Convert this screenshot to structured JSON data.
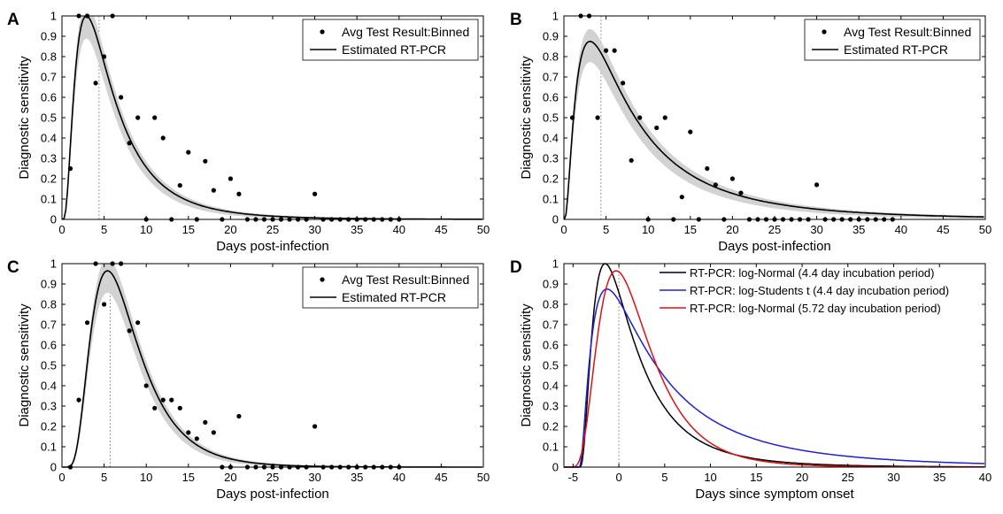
{
  "chart_data": [
    {
      "panel": "A",
      "type": "scatter",
      "xlabel": "Days post-infection",
      "ylabel": "Diagnostic sensitivity",
      "xlim": [
        0,
        50
      ],
      "ylim": [
        0,
        1
      ],
      "xticks": [
        0,
        5,
        10,
        15,
        20,
        25,
        30,
        35,
        40,
        45,
        50
      ],
      "yticks": [
        0,
        0.1,
        0.2,
        0.3,
        0.4,
        0.5,
        0.6,
        0.7,
        0.8,
        0.9,
        1
      ],
      "ytick_labels": [
        "0",
        "0.1",
        "0.2",
        "0.3",
        "0.4",
        "0.5",
        "0.6",
        "0.7",
        "0.8",
        "0.9",
        "1"
      ],
      "legend": {
        "position": "top-right",
        "entries": [
          "Avg Test Result:Binned",
          "Estimated RT-PCR"
        ]
      },
      "incubation_line_x": 4.4,
      "series": [
        {
          "name": "Avg Test Result:Binned",
          "kind": "points",
          "x": [
            1,
            2,
            3,
            4,
            5,
            6,
            7,
            8,
            9,
            10,
            11,
            12,
            13,
            14,
            15,
            16,
            17,
            18,
            19,
            20,
            21,
            22,
            23,
            24,
            25,
            26,
            27,
            28,
            29,
            30,
            31,
            32,
            33,
            34,
            35,
            36,
            37,
            38,
            39,
            40
          ],
          "y": [
            0.25,
            1,
            1,
            0.67,
            0.8,
            1,
            0.6,
            0.375,
            0.5,
            0,
            0.5,
            0.4,
            0,
            0.167,
            0.33,
            0,
            0.286,
            0.143,
            0,
            0.2,
            0.125,
            0,
            0,
            0,
            0,
            0,
            0,
            0,
            0,
            0.125,
            0,
            0,
            0,
            0,
            0,
            0,
            0,
            0,
            0,
            0
          ]
        },
        {
          "name": "Estimated RT-PCR",
          "kind": "curve",
          "peak_day": 2.9,
          "peak_value": 1.0,
          "log_sigma": 0.75
        }
      ]
    },
    {
      "panel": "B",
      "type": "scatter",
      "xlabel": "Days post-infection",
      "ylabel": "Diagnostic sensitivity",
      "xlim": [
        0,
        50
      ],
      "ylim": [
        0,
        1
      ],
      "xticks": [
        0,
        5,
        10,
        15,
        20,
        25,
        30,
        35,
        40,
        45,
        50
      ],
      "yticks": [
        0,
        0.1,
        0.2,
        0.3,
        0.4,
        0.5,
        0.6,
        0.7,
        0.8,
        0.9,
        1
      ],
      "ytick_labels": [
        "0",
        "0.1",
        "0.2",
        "0.3",
        "0.4",
        "0.5",
        "0.6",
        "0.7",
        "0.8",
        "0.9",
        "1"
      ],
      "legend": {
        "position": "top-right",
        "entries": [
          "Avg Test Result:Binned",
          "Estimated RT-PCR"
        ]
      },
      "incubation_line_x": 4.4,
      "series": [
        {
          "name": "Avg Test Result:Binned",
          "kind": "points",
          "x": [
            1,
            2,
            3,
            4,
            5,
            6,
            7,
            8,
            9,
            10,
            11,
            12,
            13,
            14,
            15,
            16,
            17,
            18,
            19,
            20,
            21,
            22,
            23,
            24,
            25,
            26,
            27,
            28,
            29,
            30,
            31,
            32,
            33,
            34,
            35,
            36,
            37,
            38,
            39
          ],
          "y": [
            0.5,
            1,
            1,
            0.5,
            0.83,
            0.83,
            0.67,
            0.29,
            0.5,
            0,
            0.45,
            0.5,
            0,
            0.11,
            0.43,
            0,
            0.25,
            0.17,
            0,
            0.2,
            0.13,
            0,
            0,
            0,
            0,
            0,
            0,
            0,
            0,
            0.17,
            0,
            0,
            0,
            0,
            0,
            0,
            0,
            0,
            0
          ]
        },
        {
          "name": "Estimated RT-PCR",
          "kind": "curve",
          "peak_day": 3.1,
          "peak_value": 0.875,
          "log_sigma": 0.95
        }
      ]
    },
    {
      "panel": "C",
      "type": "scatter",
      "xlabel": "Days post-infection",
      "ylabel": "Diagnostic sensitivity",
      "xlim": [
        0,
        50
      ],
      "ylim": [
        0,
        1
      ],
      "xticks": [
        0,
        5,
        10,
        15,
        20,
        25,
        30,
        35,
        40,
        45,
        50
      ],
      "yticks": [
        0,
        0.1,
        0.2,
        0.3,
        0.4,
        0.5,
        0.6,
        0.7,
        0.8,
        0.9,
        1
      ],
      "ytick_labels": [
        "0",
        "0.1",
        "0.2",
        "0.3",
        "0.4",
        "0.5",
        "0.6",
        "0.7",
        "0.8",
        "0.9",
        "1"
      ],
      "legend": {
        "position": "top-right",
        "entries": [
          "Avg Test Result:Binned",
          "Estimated RT-PCR"
        ]
      },
      "incubation_line_x": 5.72,
      "series": [
        {
          "name": "Avg Test Result:Binned",
          "kind": "points",
          "x": [
            1,
            2,
            3,
            4,
            5,
            6,
            7,
            8,
            9,
            10,
            11,
            12,
            13,
            14,
            15,
            16,
            17,
            18,
            19,
            20,
            21,
            22,
            23,
            24,
            25,
            26,
            27,
            28,
            29,
            30,
            31,
            32,
            33,
            34,
            35,
            36,
            37,
            38,
            39,
            40
          ],
          "y": [
            0,
            0.33,
            0.71,
            1,
            0.8,
            1,
            1,
            0.67,
            0.71,
            0.4,
            0.29,
            0.33,
            0.33,
            0.29,
            0.17,
            0.14,
            0.22,
            0.17,
            0,
            0,
            0.25,
            0,
            0,
            0,
            0,
            0,
            0,
            0,
            0,
            0.2,
            0,
            0,
            0,
            0,
            0,
            0,
            0,
            0,
            0,
            0
          ]
        },
        {
          "name": "Estimated RT-PCR",
          "kind": "curve",
          "peak_day": 5.4,
          "peak_value": 0.965,
          "log_sigma": 0.52
        }
      ]
    },
    {
      "panel": "D",
      "type": "line",
      "xlabel": "Days since symptom onset",
      "ylabel": "Diagnostic sensitivity",
      "xlim": [
        -6,
        40
      ],
      "ylim": [
        0,
        1
      ],
      "xticks": [
        -5,
        0,
        5,
        10,
        15,
        20,
        25,
        30,
        35,
        40
      ],
      "yticks": [
        0,
        0.1,
        0.2,
        0.3,
        0.4,
        0.5,
        0.6,
        0.7,
        0.8,
        0.9,
        1
      ],
      "ytick_labels": [
        "0",
        "0.1",
        "0.2",
        "0.3",
        "0.4",
        "0.5",
        "0.6",
        "0.7",
        "0.8",
        "0.9",
        "1"
      ],
      "legend": {
        "position": "top-right"
      },
      "onset_line_x": 0,
      "series": [
        {
          "name": "RT-PCR: log-Normal (4.4 day incubation period)",
          "color": "#000000",
          "start_day": -4.4,
          "peak_day": -1.5,
          "peak_value": 1.0,
          "log_sigma": 0.75
        },
        {
          "name": "RT-PCR: log-Students t (4.4 day incubation period)",
          "color": "#1f1fd8",
          "start_day": -4.4,
          "peak_day": -1.3,
          "peak_value": 0.875,
          "log_sigma": 0.95
        },
        {
          "name": "RT-PCR: log-Normal (5.72 day incubation period)",
          "color": "#e01010",
          "start_day": -5.72,
          "peak_day": -0.3,
          "peak_value": 0.965,
          "log_sigma": 0.52
        }
      ]
    }
  ],
  "colors": {
    "band": "#d2d2d2",
    "dotted_line": "#9a9a9a",
    "axis": "#000000"
  }
}
